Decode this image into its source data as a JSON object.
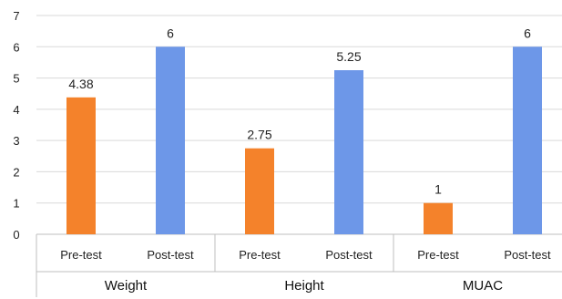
{
  "chart_data": {
    "type": "bar",
    "groups": [
      {
        "name": "Weight",
        "bars": [
          {
            "category": "Pre-test",
            "value": 4.38,
            "label": "4.38",
            "color": "#f4822b"
          },
          {
            "category": "Post-test",
            "value": 6,
            "label": "6",
            "color": "#6d97e8"
          }
        ]
      },
      {
        "name": "Height",
        "bars": [
          {
            "category": "Pre-test",
            "value": 2.75,
            "label": "2.75",
            "color": "#f4822b"
          },
          {
            "category": "Post-test",
            "value": 5.25,
            "label": "5.25",
            "color": "#6d97e8"
          }
        ]
      },
      {
        "name": "MUAC",
        "bars": [
          {
            "category": "Pre-test",
            "value": 1,
            "label": "1",
            "color": "#f4822b"
          },
          {
            "category": "Post-test",
            "value": 6,
            "label": "6",
            "color": "#6d97e8"
          }
        ]
      }
    ],
    "yticks": [
      "0",
      "1",
      "2",
      "3",
      "4",
      "5",
      "6",
      "7"
    ],
    "ylim": [
      0,
      7
    ],
    "grid": true,
    "legend": "none",
    "title": "",
    "xlabel": "",
    "ylabel": ""
  }
}
